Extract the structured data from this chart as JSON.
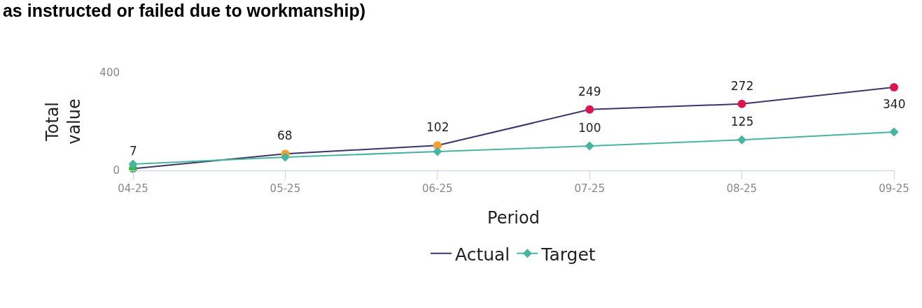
{
  "chart_data": {
    "type": "line",
    "title": "as instructed or failed due to workmanship)",
    "xlabel": "Period",
    "ylabel": "Total value",
    "categories": [
      "04-25",
      "05-25",
      "06-25",
      "07-25",
      "08-25",
      "09-25"
    ],
    "series": [
      {
        "name": "Actual",
        "color": "#3d3468",
        "colors": [
          "#3cb54a",
          "#f5a030",
          "#f5a030",
          "#dc1450",
          "#dc1450",
          "#dc1450"
        ],
        "marker": "circle",
        "values": [
          7,
          68,
          102,
          249,
          272,
          340
        ],
        "value_labels": [
          "7",
          "68",
          "102",
          "249",
          "272",
          "340"
        ]
      },
      {
        "name": "Target",
        "color": "#47b5a0",
        "marker": "diamond",
        "values": [
          26,
          54,
          77,
          100,
          125,
          157
        ],
        "value_labels": [
          null,
          null,
          null,
          "100",
          "125",
          null
        ]
      }
    ],
    "ylim": [
      0,
      400
    ],
    "yticks": [
      0,
      400
    ],
    "grid": false,
    "legend": "bottom"
  }
}
